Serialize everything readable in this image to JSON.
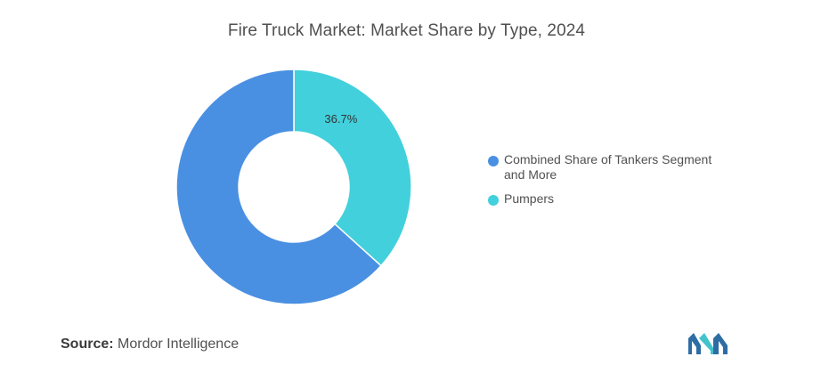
{
  "chart_data": {
    "type": "pie",
    "title": "Fire Truck Market: Market Share by Type, 2024",
    "variant": "donut",
    "slices": [
      {
        "label": "Combined Share of Tankers Segment and More",
        "value": 63.3,
        "color": "#4a90e2",
        "data_label": ""
      },
      {
        "label": "Pumpers",
        "value": 36.7,
        "color": "#42d0dc",
        "data_label": "36.7%"
      }
    ],
    "legend_position": "right"
  },
  "source": {
    "key": "Source:",
    "value": "Mordor Intelligence"
  },
  "logo": {
    "icon": "mordor-intelligence-logo-icon",
    "colors": [
      "#2e6da4",
      "#42c3cc"
    ]
  }
}
